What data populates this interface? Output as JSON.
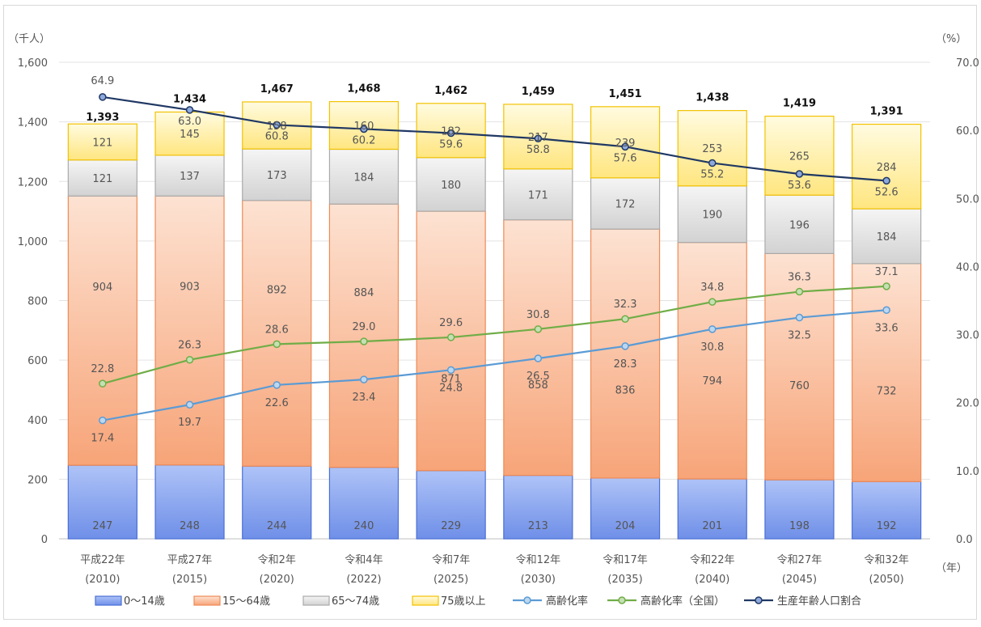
{
  "chart_data": {
    "type": "bar",
    "stacked": true,
    "left_unit": "（千人）",
    "right_unit": "（%）",
    "x_unit": "（年）",
    "categories": [
      {
        "era": "平成22年",
        "year": "(2010)"
      },
      {
        "era": "平成27年",
        "year": "(2015)"
      },
      {
        "era": "令和2年",
        "year": "(2020)"
      },
      {
        "era": "令和4年",
        "year": "(2022)"
      },
      {
        "era": "令和7年",
        "year": "(2025)"
      },
      {
        "era": "令和12年",
        "year": "(2030)"
      },
      {
        "era": "令和17年",
        "year": "(2035)"
      },
      {
        "era": "令和22年",
        "year": "(2040)"
      },
      {
        "era": "令和27年",
        "year": "(2045)"
      },
      {
        "era": "令和32年",
        "year": "(2050)"
      }
    ],
    "series": [
      {
        "name": "0〜14歳",
        "values": [
          247,
          248,
          244,
          240,
          229,
          213,
          204,
          201,
          198,
          192
        ],
        "color_top": "#aec3f7",
        "color_bottom": "#6f8fe8",
        "stroke": "#4a6fd6"
      },
      {
        "name": "15〜64歳",
        "values": [
          904,
          903,
          892,
          884,
          871,
          858,
          836,
          794,
          760,
          732
        ],
        "color_top": "#fde2d2",
        "color_bottom": "#f7a478",
        "stroke": "#ee8a55"
      },
      {
        "name": "65〜74歳",
        "values": [
          121,
          137,
          173,
          184,
          180,
          171,
          172,
          190,
          196,
          184
        ],
        "color_top": "#f5f5f5",
        "color_bottom": "#d2d2d2",
        "stroke": "#aaaaaa"
      },
      {
        "name": "75歳以上",
        "values": [
          121,
          145,
          158,
          160,
          182,
          217,
          239,
          253,
          265,
          284
        ],
        "color_top": "#fffbe0",
        "color_bottom": "#ffe680",
        "stroke": "#f2c200"
      }
    ],
    "totals": [
      "1,393",
      "1,434",
      "1,467",
      "1,468",
      "1,462",
      "1,459",
      "1,451",
      "1,438",
      "1,419",
      "1,391"
    ],
    "lines": [
      {
        "name": "高齢化率",
        "values": [
          17.4,
          19.7,
          22.6,
          23.4,
          24.8,
          26.5,
          28.3,
          30.8,
          32.5,
          33.6
        ],
        "color": "#5b9bd5",
        "fill": "#bdd7ee"
      },
      {
        "name": "高齢化率（全国）",
        "values": [
          22.8,
          26.3,
          28.6,
          29.0,
          29.6,
          30.8,
          32.3,
          34.8,
          36.3,
          37.1
        ],
        "color": "#70ad47",
        "fill": "#c5e0b4"
      },
      {
        "name": "生産年齢人口割合",
        "values": [
          64.9,
          63.0,
          60.8,
          60.2,
          59.6,
          58.8,
          57.6,
          55.2,
          53.6,
          52.6
        ],
        "color": "#203864",
        "fill": "#8ea9db"
      }
    ],
    "left_axis": {
      "ylim": [
        0,
        1600
      ],
      "ticks": [
        "0",
        "200",
        "400",
        "600",
        "800",
        "1,000",
        "1,200",
        "1,400",
        "1,600"
      ]
    },
    "right_axis": {
      "ylim": [
        0,
        70
      ],
      "ticks": [
        "0.0",
        "10.0",
        "20.0",
        "30.0",
        "40.0",
        "50.0",
        "60.0",
        "70.0"
      ]
    },
    "grid": true,
    "legend_position": "bottom"
  }
}
